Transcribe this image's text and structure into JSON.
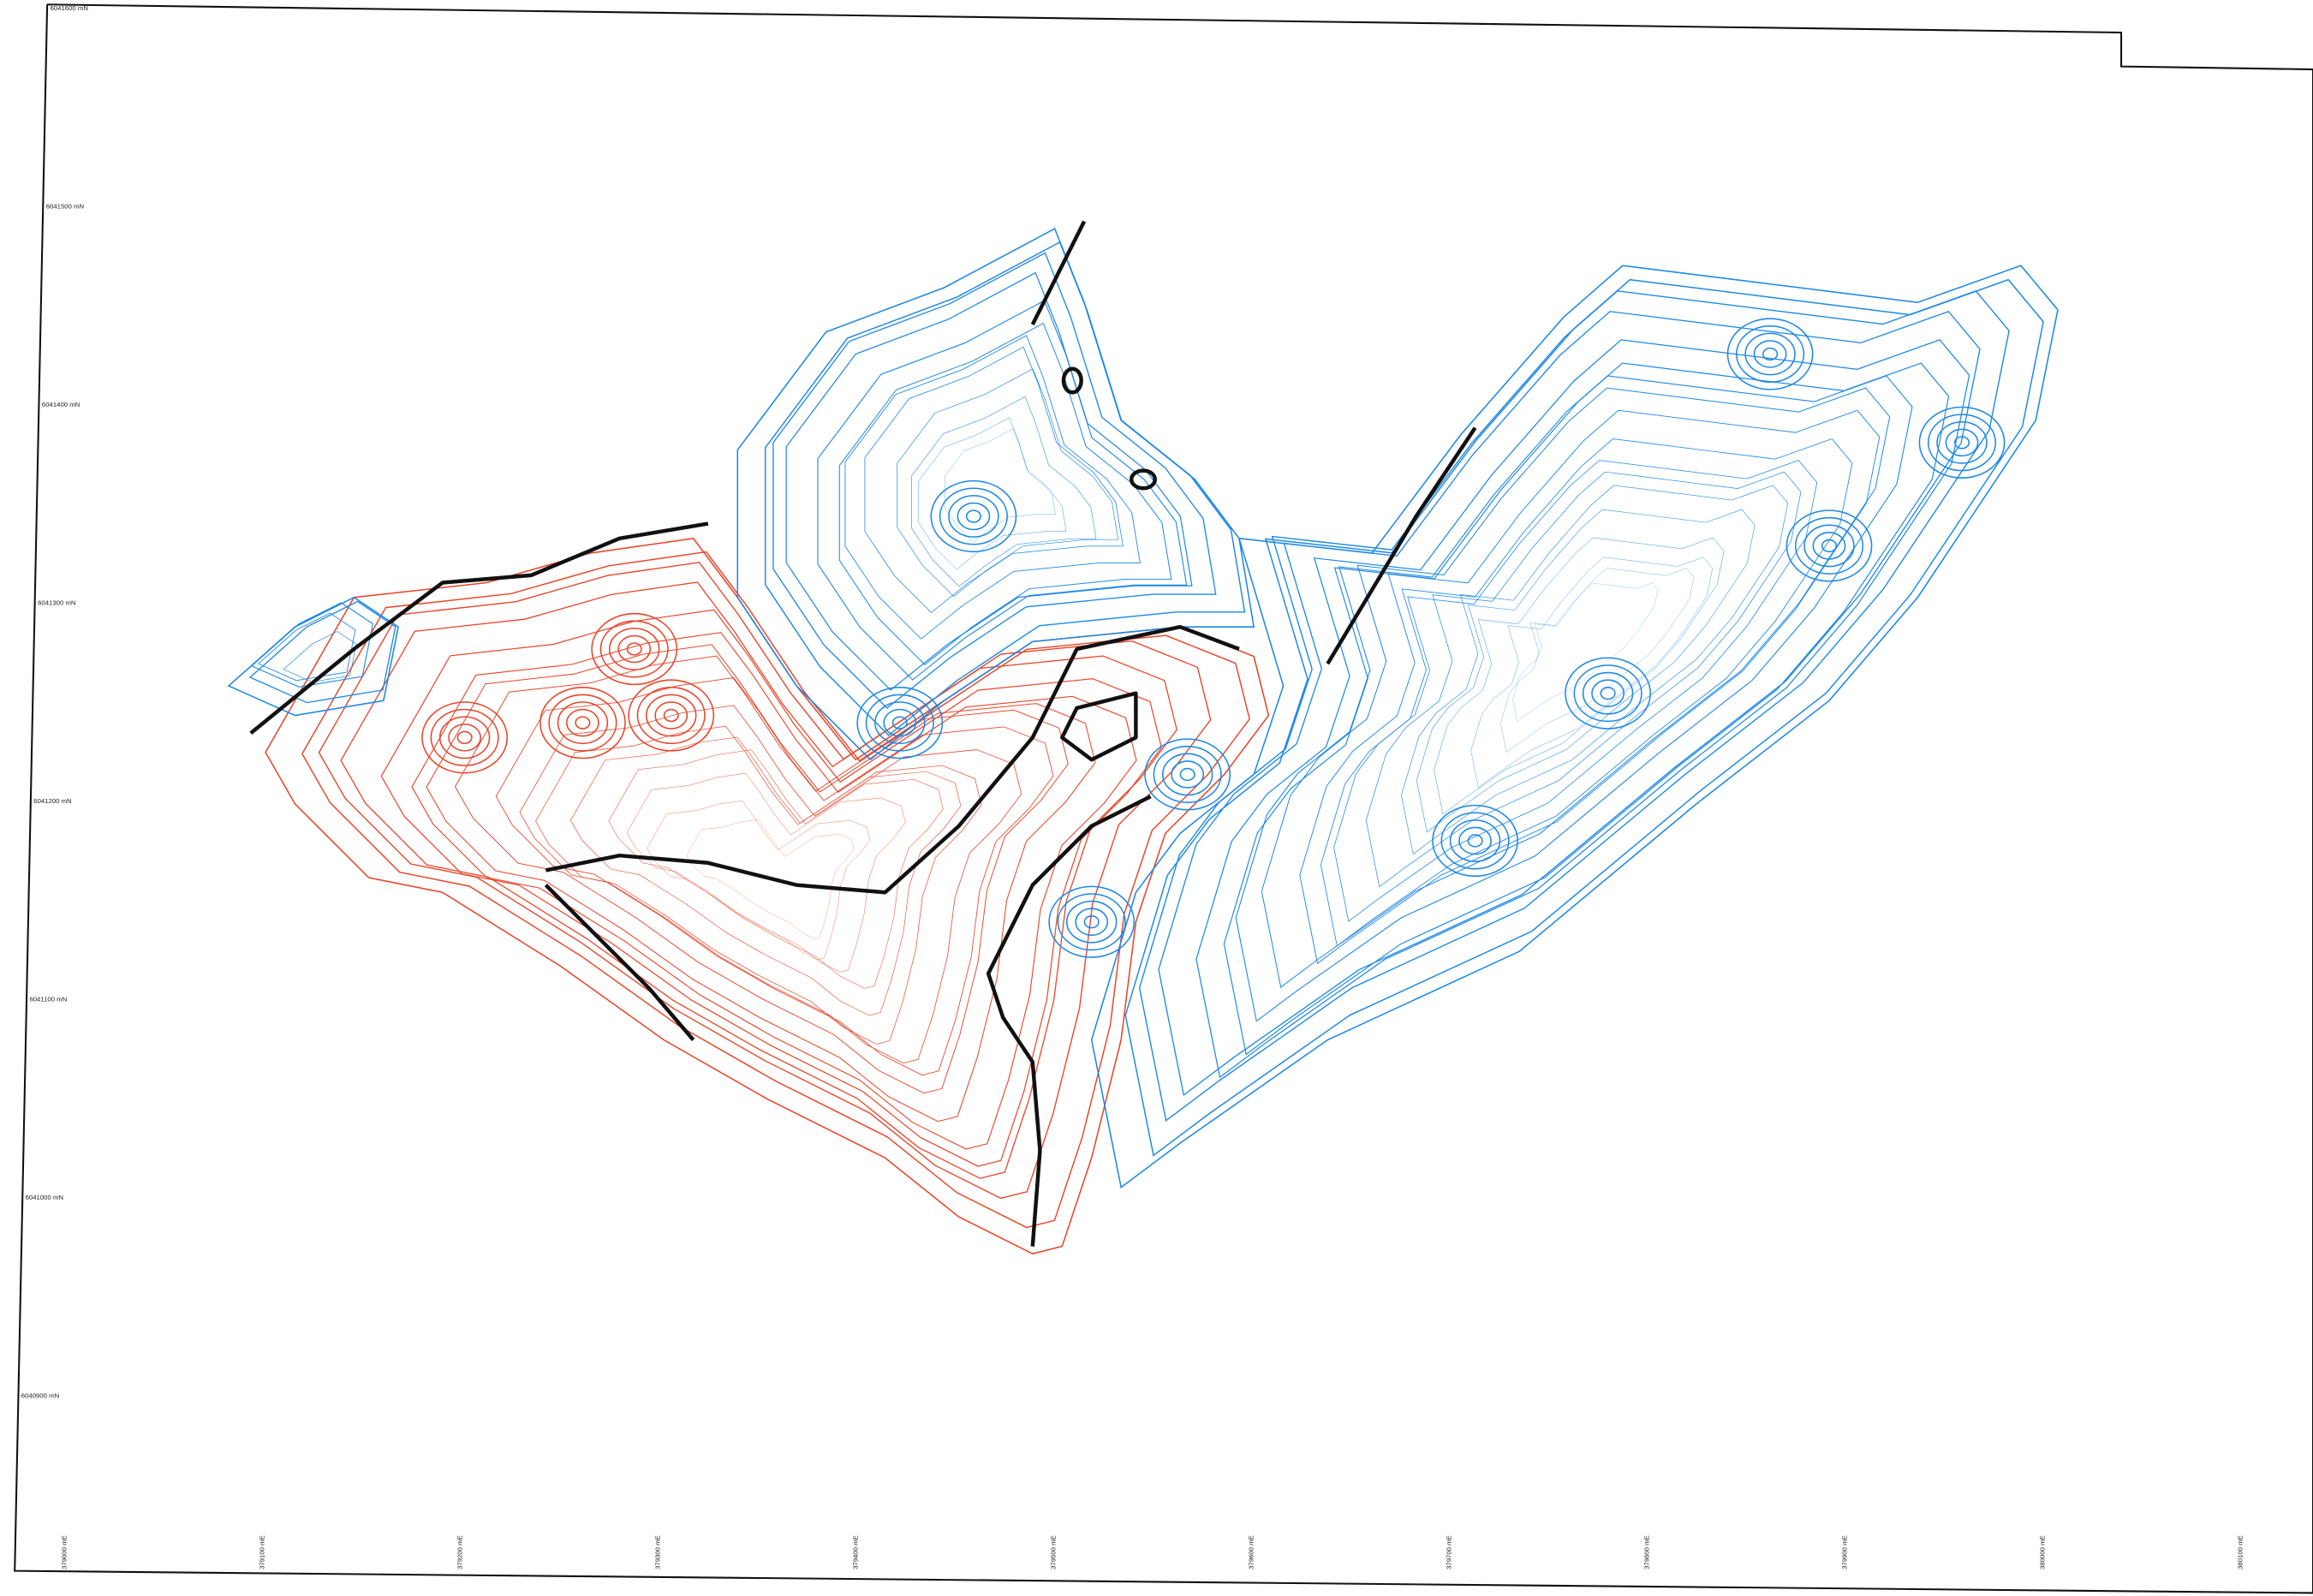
{
  "map": {
    "northing_labels": [
      "6041600 mN",
      "6041500 mN",
      "6041400 mN",
      "6041300 mN",
      "6041200 mN",
      "6041100 mN",
      "6041000 mN",
      "6040900 mN"
    ],
    "easting_labels": [
      "379000 mE",
      "379100 mE",
      "379200 mE",
      "379300 mE",
      "379400 mE",
      "379500 mE",
      "379600 mE",
      "379700 mE",
      "379800 mE",
      "379900 mE",
      "380000 mE",
      "380100 mE"
    ]
  }
}
